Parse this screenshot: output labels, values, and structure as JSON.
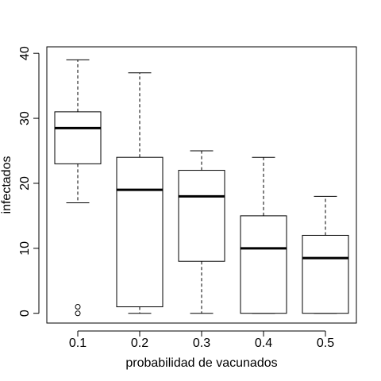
{
  "chart_data": {
    "type": "boxplot",
    "xlabel": "probabilidad de vacunados",
    "ylabel": "infectados",
    "categories": [
      "0.1",
      "0.2",
      "0.3",
      "0.4",
      "0.5"
    ],
    "y_ticks": [
      "0",
      "10",
      "20",
      "30",
      "40"
    ],
    "ylim": [
      -1.5,
      41
    ],
    "grid": false,
    "boxes": [
      {
        "category": "0.1",
        "min": 17,
        "q1": 23,
        "median": 28.5,
        "q3": 31,
        "max": 39,
        "outliers": [
          1,
          0
        ]
      },
      {
        "category": "0.2",
        "min": 0,
        "q1": 1,
        "median": 19,
        "q3": 24,
        "max": 37,
        "outliers": []
      },
      {
        "category": "0.3",
        "min": 0,
        "q1": 8,
        "median": 18,
        "q3": 22,
        "max": 25,
        "outliers": []
      },
      {
        "category": "0.4",
        "min": 0,
        "q1": 0,
        "median": 10,
        "q3": 15,
        "max": 24,
        "outliers": []
      },
      {
        "category": "0.5",
        "min": 0,
        "q1": 0,
        "median": 8.5,
        "q3": 12,
        "max": 18,
        "outliers": []
      }
    ]
  }
}
